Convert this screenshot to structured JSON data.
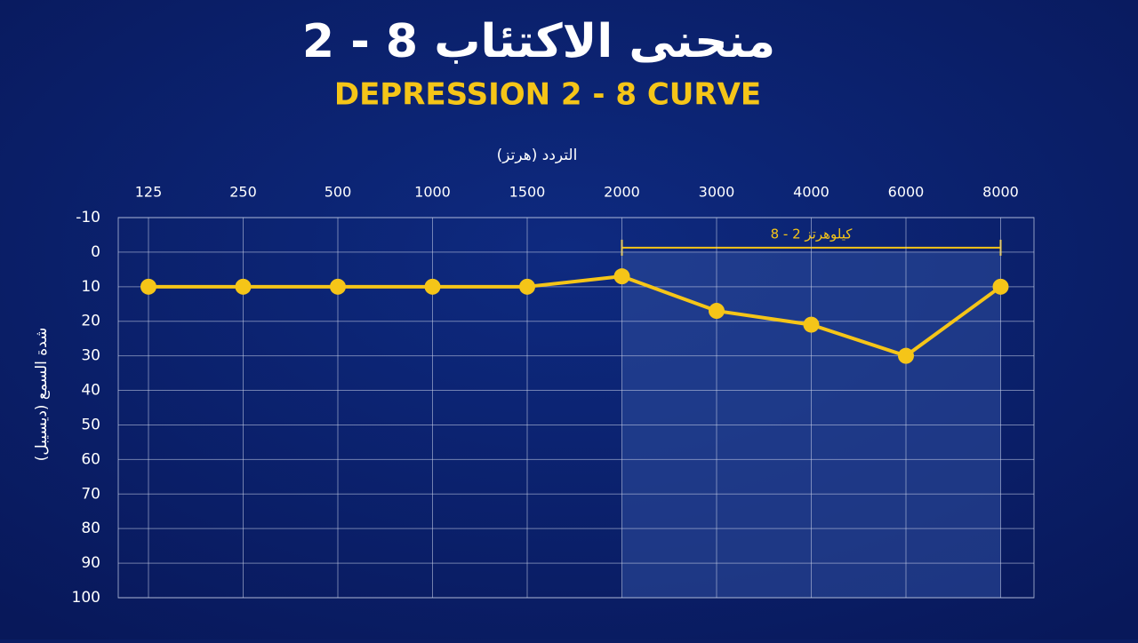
{
  "chart_data": {
    "type": "line",
    "title": "منحنى الاكتئاب 8 - 2",
    "subtitle": "DEPRESSION 2 - 8 CURVE",
    "x_label": "التردد (هرتز)",
    "y_label": "شدة السمع (ديسيبل)",
    "categories": [
      "125",
      "250",
      "500",
      "1000",
      "1500",
      "2000",
      "3000",
      "4000",
      "6000",
      "8000"
    ],
    "values": [
      10,
      10,
      10,
      10,
      10,
      7,
      17,
      21,
      30,
      10
    ],
    "color": "#f5c518",
    "ylim": [
      -10,
      100
    ],
    "yticks": [
      -10,
      0,
      10,
      20,
      30,
      40,
      50,
      60,
      70,
      80,
      90,
      100
    ],
    "y_inverted": true,
    "grid": true,
    "highlight": {
      "label": "8 - 2 كيلوهرتز",
      "from": "2000",
      "to": "8000",
      "top": 0
    }
  }
}
